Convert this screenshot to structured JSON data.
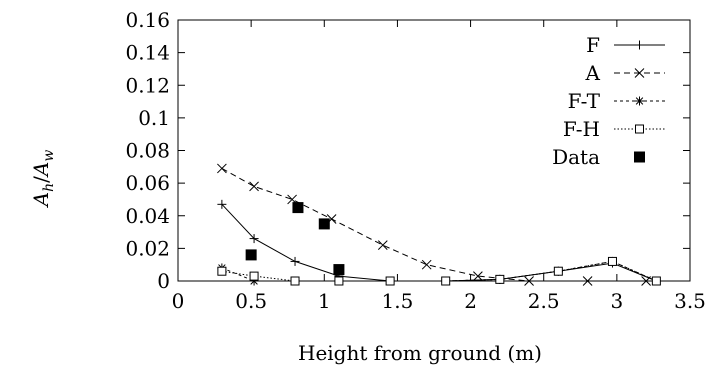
{
  "chart_data": {
    "type": "line",
    "xlabel": "Height from ground (m)",
    "ylabel": "A",
    "ylabel_sub_1": "h",
    "ylabel_slash": "/",
    "ylabel_sub_2": "w",
    "xlim": [
      0,
      3.5
    ],
    "ylim": [
      0,
      0.16
    ],
    "x_ticks": [
      "0",
      "0.5",
      "1",
      "1.5",
      "2",
      "2.5",
      "3",
      "3.5"
    ],
    "x_tick_values": [
      0,
      0.5,
      1,
      1.5,
      2,
      2.5,
      3,
      3.5
    ],
    "y_ticks": [
      "0",
      "0.02",
      "0.04",
      "0.06",
      "0.08",
      "0.1",
      "0.12",
      "0.14",
      "0.16"
    ],
    "y_tick_values": [
      0,
      0.02,
      0.04,
      0.06,
      0.08,
      0.1,
      0.12,
      0.14,
      0.16
    ],
    "grid": false,
    "legend_position": "top-right",
    "series": [
      {
        "name": "F",
        "style": "solid",
        "marker": "plus",
        "points": [
          [
            0.3,
            0.047
          ],
          [
            0.52,
            0.026
          ],
          [
            0.8,
            0.012
          ],
          [
            1.1,
            0.003
          ],
          [
            1.45,
            0.0
          ],
          [
            1.83,
            0.0
          ],
          [
            2.2,
            0.001
          ],
          [
            2.6,
            0.006
          ],
          [
            2.97,
            0.011
          ],
          [
            3.27,
            0.0
          ]
        ]
      },
      {
        "name": "A",
        "style": "dashed",
        "marker": "cross",
        "points": [
          [
            0.3,
            0.069
          ],
          [
            0.52,
            0.058
          ],
          [
            0.78,
            0.05
          ],
          [
            1.05,
            0.038
          ],
          [
            1.4,
            0.022
          ],
          [
            1.7,
            0.01
          ],
          [
            2.05,
            0.003
          ],
          [
            2.4,
            0.0
          ],
          [
            2.8,
            0.0
          ],
          [
            3.2,
            0.0
          ]
        ]
      },
      {
        "name": "F-T",
        "style": "dotted",
        "marker": "asterisk",
        "points": [
          [
            0.3,
            0.008
          ],
          [
            0.52,
            0.0
          ],
          [
            0.8,
            0.0
          ],
          [
            1.1,
            0.0
          ],
          [
            1.45,
            0.0
          ],
          [
            1.83,
            0.0
          ],
          [
            2.2,
            0.001
          ],
          [
            2.6,
            0.006
          ],
          [
            2.97,
            0.012
          ],
          [
            3.27,
            0.0
          ]
        ]
      },
      {
        "name": "F-H",
        "style": "dotted-fine",
        "marker": "open-square",
        "points": [
          [
            0.3,
            0.006
          ],
          [
            0.52,
            0.003
          ],
          [
            0.8,
            0.0
          ],
          [
            1.1,
            0.0
          ],
          [
            1.45,
            0.0
          ],
          [
            1.83,
            0.0
          ],
          [
            2.2,
            0.001
          ],
          [
            2.6,
            0.006
          ],
          [
            2.97,
            0.012
          ],
          [
            3.27,
            0.0
          ]
        ]
      },
      {
        "name": "Data",
        "style": "none",
        "marker": "filled-square",
        "points": [
          [
            0.5,
            0.016
          ],
          [
            0.82,
            0.045
          ],
          [
            1.0,
            0.035
          ],
          [
            1.1,
            0.007
          ]
        ]
      }
    ]
  }
}
